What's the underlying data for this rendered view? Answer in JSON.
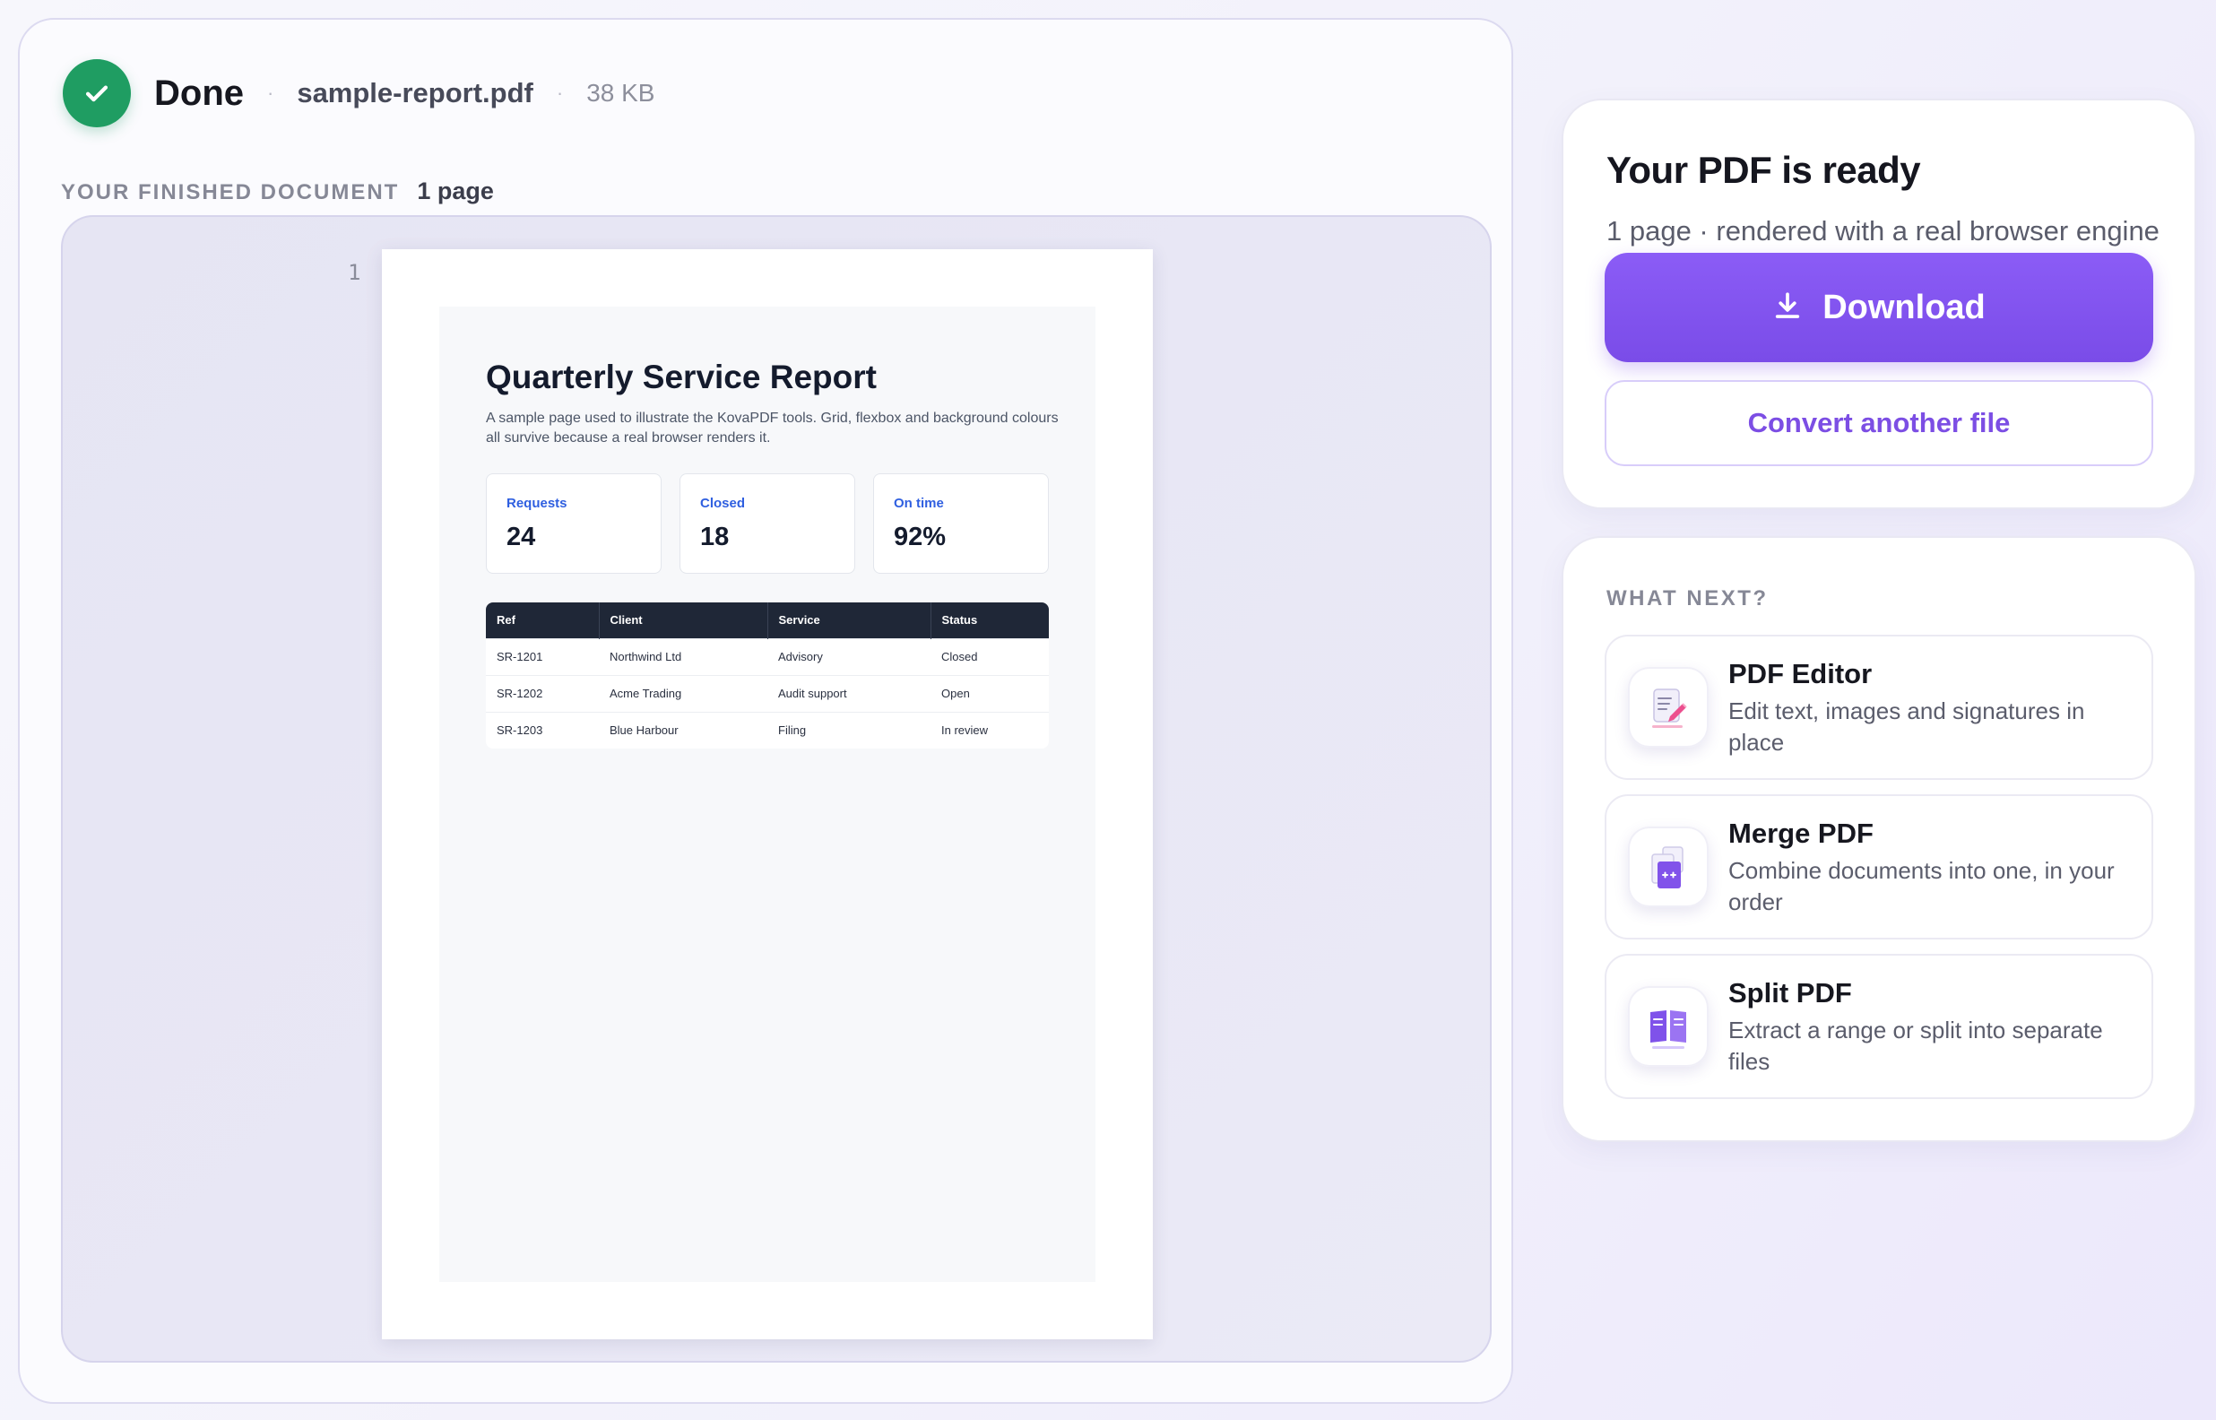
{
  "status": {
    "label": "Done",
    "file_name": "sample-report.pdf",
    "file_size": "38 KB",
    "separator": "·"
  },
  "document": {
    "label": "YOUR FINISHED DOCUMENT",
    "pages": "1 page",
    "page_number": "1"
  },
  "report": {
    "title": "Quarterly Service Report",
    "description": "A sample page used to illustrate the KovaPDF tools. Grid, flexbox and background colours all survive because a real browser renders it.",
    "stats": [
      {
        "label": "Requests",
        "value": "24"
      },
      {
        "label": "Closed",
        "value": "18"
      },
      {
        "label": "On time",
        "value": "92%"
      }
    ],
    "table": {
      "headers": [
        "Ref",
        "Client",
        "Service",
        "Status"
      ],
      "rows": [
        [
          "SR-1201",
          "Northwind Ltd",
          "Advisory",
          "Closed"
        ],
        [
          "SR-1202",
          "Acme Trading",
          "Audit support",
          "Open"
        ],
        [
          "SR-1203",
          "Blue Harbour",
          "Filing",
          "In review"
        ]
      ]
    }
  },
  "ready": {
    "title": "Your PDF is ready",
    "subtitle": "1 page · rendered with a real browser engine",
    "download_label": "Download",
    "download_icon": "download-icon",
    "convert_label": "Convert another file"
  },
  "next": {
    "heading": "WHAT NEXT?",
    "tools": [
      {
        "title": "PDF Editor",
        "description": "Edit text, images and signatures in place",
        "icon": "pdf-editor-icon"
      },
      {
        "title": "Merge PDF",
        "description": "Combine documents into one, in your order",
        "icon": "merge-pdf-icon"
      },
      {
        "title": "Split PDF",
        "description": "Extract a range or split into separate files",
        "icon": "split-pdf-icon"
      }
    ]
  },
  "colors": {
    "accent": "#7c4ee4",
    "success": "#1f9d62",
    "table_header": "#1f2737",
    "stat_label": "#2f5fe0"
  }
}
